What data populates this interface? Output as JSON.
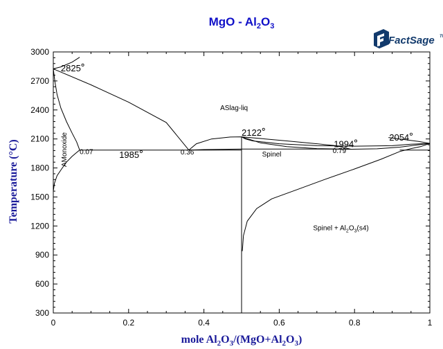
{
  "chart_data": {
    "type": "line",
    "title": [
      "MgO - Al",
      "2",
      "O",
      "3"
    ],
    "xlabel": [
      "mole Al",
      "2",
      "O",
      "3",
      "/(MgO+Al",
      "2",
      "O",
      "3",
      ")"
    ],
    "ylabel": "Temperature (°C)",
    "xlim": [
      0,
      1
    ],
    "ylim": [
      300,
      3000
    ],
    "xticks": [
      0,
      0.2,
      0.4,
      0.6,
      0.8,
      1
    ],
    "xtick_labels": [
      "0",
      "0.2",
      "0.4",
      "0.6",
      "0.8",
      "1"
    ],
    "yticks": [
      300,
      600,
      900,
      1200,
      1500,
      1800,
      2100,
      2400,
      2700,
      3000
    ],
    "ytick_labels": [
      "300",
      "600",
      "900",
      "1200",
      "1500",
      "1800",
      "2100",
      "2400",
      "2700",
      "3000"
    ],
    "region_labels": [
      {
        "text": "ASlag-liq",
        "x": 0.48,
        "y": 2400
      },
      {
        "text": "Spinel",
        "x": 0.58,
        "y": 1920
      }
    ],
    "vertical_region_label": {
      "text": "AMonoxide",
      "x": 0.035,
      "y": 1990
    },
    "spinel_al2o3_label": [
      "Spinel + Al",
      "2",
      "O",
      "3",
      "(s4)"
    ],
    "spinel_al2o3_label_pos": {
      "x": 0.69,
      "y": 1155
    },
    "temperature_labels": [
      {
        "text": "2825",
        "x": 0.02,
        "y": 2800
      },
      {
        "text": "2122",
        "x": 0.5,
        "y": 2135
      },
      {
        "text": "1994",
        "x": 0.745,
        "y": 2015
      },
      {
        "text": "2054",
        "x": 0.892,
        "y": 2085
      },
      {
        "text": "1985",
        "x": 0.175,
        "y": 1905
      }
    ],
    "composition_labels": [
      {
        "text": "0.07",
        "x": 0.07,
        "y": 1945
      },
      {
        "text": "0.36",
        "x": 0.338,
        "y": 1940
      },
      {
        "text": "0.79",
        "x": 0.742,
        "y": 1955
      }
    ],
    "series": [
      {
        "points": [
          [
            0,
            2825
          ],
          [
            0.1,
            2660
          ],
          [
            0.2,
            2480
          ],
          [
            0.3,
            2270
          ],
          [
            0.36,
            1985
          ]
        ]
      },
      {
        "points": [
          [
            0,
            2825
          ],
          [
            0.02,
            2845
          ],
          [
            0.05,
            2895
          ],
          [
            0.07,
            2945
          ]
        ]
      },
      {
        "points": [
          [
            0,
            2825
          ],
          [
            0.004,
            2700
          ],
          [
            0.01,
            2560
          ],
          [
            0.02,
            2420
          ],
          [
            0.035,
            2280
          ],
          [
            0.05,
            2160
          ],
          [
            0.062,
            2070
          ],
          [
            0.07,
            1985
          ]
        ]
      },
      {
        "points": [
          [
            0,
            1560
          ],
          [
            0.003,
            1640
          ],
          [
            0.01,
            1720
          ],
          [
            0.022,
            1790
          ],
          [
            0.035,
            1860
          ],
          [
            0.05,
            1920
          ],
          [
            0.062,
            1960
          ],
          [
            0.07,
            1985
          ]
        ]
      },
      {
        "points": [
          [
            0.07,
            1985
          ],
          [
            0.5,
            1985
          ]
        ]
      },
      {
        "points": [
          [
            0.36,
            1985
          ],
          [
            0.38,
            2050
          ],
          [
            0.42,
            2100
          ],
          [
            0.47,
            2120
          ],
          [
            0.5,
            2122
          ],
          [
            0.55,
            2105
          ],
          [
            0.62,
            2080
          ],
          [
            0.7,
            2050
          ],
          [
            0.75,
            2030
          ],
          [
            0.79,
            1994
          ]
        ]
      },
      {
        "points": [
          [
            0.36,
            1985
          ],
          [
            0.4,
            1990
          ],
          [
            0.5,
            1995
          ],
          [
            0.7,
            1995
          ],
          [
            0.79,
            1994
          ]
        ]
      },
      {
        "points": [
          [
            0.5,
            2122
          ],
          [
            0.55,
            2060
          ],
          [
            0.62,
            2020
          ],
          [
            0.7,
            2000
          ],
          [
            0.79,
            1994
          ],
          [
            0.86,
            1998
          ],
          [
            0.92,
            2015
          ],
          [
            0.96,
            2035
          ],
          [
            1,
            2054
          ]
        ]
      },
      {
        "points": [
          [
            0.5,
            2122
          ],
          [
            0.51,
            2100
          ],
          [
            0.53,
            2080
          ],
          [
            0.6,
            2050
          ],
          [
            0.7,
            2030
          ],
          [
            0.8,
            2025
          ],
          [
            0.9,
            2030
          ],
          [
            0.95,
            2045
          ],
          [
            1,
            2054
          ]
        ]
      },
      {
        "points": [
          [
            0.89,
            2115
          ],
          [
            0.91,
            2105
          ],
          [
            0.94,
            2090
          ],
          [
            0.97,
            2075
          ],
          [
            1,
            2054
          ]
        ]
      },
      {
        "points": [
          [
            0.5,
            300
          ],
          [
            0.5,
            2122
          ]
        ]
      },
      {
        "points": [
          [
            0.502,
            940
          ],
          [
            0.505,
            1100
          ],
          [
            0.515,
            1250
          ],
          [
            0.54,
            1380
          ],
          [
            0.58,
            1480
          ],
          [
            0.65,
            1580
          ],
          [
            0.72,
            1680
          ],
          [
            0.8,
            1790
          ],
          [
            0.87,
            1890
          ],
          [
            0.92,
            1970
          ],
          [
            0.95,
            2000
          ],
          [
            0.975,
            2020
          ],
          [
            1,
            2054
          ]
        ]
      },
      {
        "points": [
          [
            0.92,
            1985
          ],
          [
            1,
            1985
          ]
        ]
      }
    ]
  },
  "logo": {
    "text": "FactSage",
    "mark": "TM"
  }
}
